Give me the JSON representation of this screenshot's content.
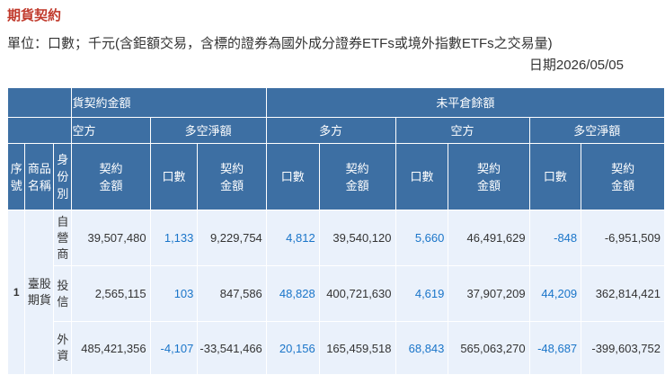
{
  "page": {
    "title": "期貨契約",
    "note": "單位：口數；千元(含鉅額交易，含標的證券為國外成分證券ETFs或境外指數ETFs之交易量)",
    "date": "日期2026/05/05"
  },
  "table": {
    "group_headers": {
      "trading_partial": "貨契約金額",
      "open_interest": "未平倉餘額"
    },
    "sub_headers": {
      "short_partial": "空方",
      "net": "多空淨額",
      "oi_long": "多方",
      "oi_short": "空方",
      "oi_net": "多空淨額"
    },
    "col_headers": {
      "seq": [
        "序",
        "號"
      ],
      "product": [
        "商品",
        "名稱"
      ],
      "identity": [
        "身",
        "份",
        "別"
      ],
      "contract_amount": [
        "契約",
        "金額"
      ],
      "lots": "口數"
    },
    "rows": [
      {
        "seq": "1",
        "product": [
          "臺股",
          "期貨"
        ],
        "identity": [
          "自",
          "營",
          "商"
        ],
        "short_amount": "39,507,480",
        "net_lots": "1,133",
        "net_amount": "9,229,754",
        "oi_long_lots": "4,812",
        "oi_long_amount": "39,540,120",
        "oi_short_lots": "5,660",
        "oi_short_amount": "46,491,629",
        "oi_net_lots": "-848",
        "oi_net_amount": "-6,951,509"
      },
      {
        "identity": [
          "投",
          "信"
        ],
        "short_amount": "2,565,115",
        "net_lots": "103",
        "net_amount": "847,586",
        "oi_long_lots": "48,828",
        "oi_long_amount": "400,721,630",
        "oi_short_lots": "4,619",
        "oi_short_amount": "37,907,209",
        "oi_net_lots": "44,209",
        "oi_net_amount": "362,814,421"
      },
      {
        "identity": [
          "外",
          "資"
        ],
        "short_amount": "485,421,356",
        "net_lots": "-4,107",
        "net_amount": "-33,541,466",
        "oi_long_lots": "20,156",
        "oi_long_amount": "165,459,518",
        "oi_short_lots": "68,843",
        "oi_short_amount": "565,063,270",
        "oi_net_lots": "-48,687",
        "oi_net_amount": "-399,603,752"
      }
    ]
  }
}
